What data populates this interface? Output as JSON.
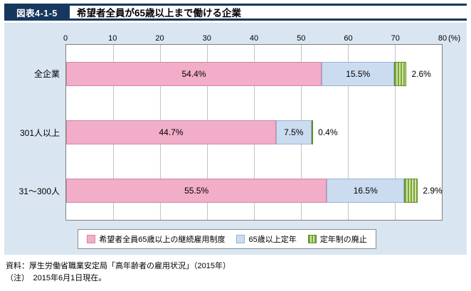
{
  "header": {
    "figure_label": "図表4-1-5",
    "title": "希望者全員が65歳以上まで働ける企業"
  },
  "chart_data": {
    "type": "bar",
    "orientation": "horizontal",
    "stacked": true,
    "title": "希望者全員が65歳以上まで働ける企業",
    "categories": [
      "全企業",
      "301人以上",
      "31～300人"
    ],
    "series": [
      {
        "name": "希望者全員65歳以上の継続雇用制度",
        "color": "#f2adc8",
        "border": "#cd88a9",
        "values": [
          54.4,
          44.7,
          55.5
        ],
        "labels": [
          "54.4%",
          "44.7%",
          "55.5%"
        ]
      },
      {
        "name": "65歳以上定年",
        "color": "#ccdcf0",
        "border": "#97b3d6",
        "values": [
          15.5,
          7.5,
          16.5
        ],
        "labels": [
          "15.5%",
          "7.5%",
          "16.5%"
        ]
      },
      {
        "name": "定年制の廃止",
        "color": "#79a838",
        "pattern": "vertical-stripes",
        "pattern_alt": "#d2e2a8",
        "border": "#5f8c28",
        "values": [
          2.6,
          0.4,
          2.9
        ],
        "labels": [
          "2.6%",
          "0.4%",
          "2.9%"
        ]
      }
    ],
    "xlim": [
      0,
      80
    ],
    "x_ticks": [
      0,
      10,
      20,
      30,
      40,
      50,
      60,
      70,
      80
    ],
    "x_unit": "(%)",
    "grid": true,
    "legend_position": "bottom"
  },
  "footer": {
    "source": "資料：厚生労働省職業安定局「高年齢者の雇用状況」（2015年）",
    "note": "（注）　2015年6月1日現在。"
  }
}
